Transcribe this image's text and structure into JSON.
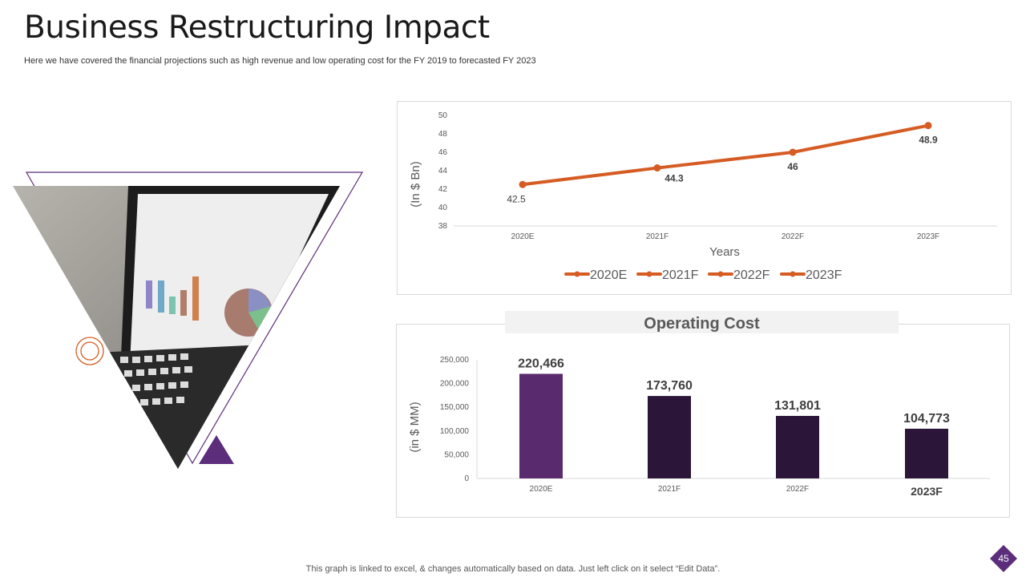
{
  "title": "Business Restructuring Impact",
  "subtitle": "Here we have covered the financial projections such as high revenue and low operating cost for the FY 2019 to forecasted FY 2023",
  "footer": "This graph is linked to excel, & changes automatically based on data. Just left click on it select “Edit Data”.",
  "page_number": "45",
  "colors": {
    "line": "#d55c23",
    "bar_2020E": "#5a2a6e",
    "bar_dark": "#2b1538",
    "accent_purple": "#5b2d7a",
    "accent_orange": "#d55c23"
  },
  "chart_data": [
    {
      "type": "line",
      "categories": [
        "2020E",
        "2021F",
        "2022F",
        "2023F"
      ],
      "values": [
        42.5,
        44.3,
        46,
        48.9
      ],
      "data_labels": [
        "42.5",
        "44.3",
        "46",
        "48.9"
      ],
      "ylabel": "(In $ Bn)",
      "xlabel": "Years",
      "ylim": [
        38,
        50
      ],
      "yticks": [
        "38",
        "40",
        "42",
        "44",
        "46",
        "48",
        "50"
      ],
      "legend": [
        "2020E",
        "2021F",
        "2022F",
        "2023F"
      ],
      "legend_position": "bottom"
    },
    {
      "type": "bar",
      "title": "Operating Cost",
      "categories": [
        "2020E",
        "2021F",
        "2022F",
        "2023F"
      ],
      "values": [
        220466,
        173760,
        131801,
        104773
      ],
      "data_labels": [
        "220,466",
        "173,760",
        "131,801",
        "104,773"
      ],
      "ylabel": "(in $ MM)",
      "ylim": [
        0,
        250000
      ],
      "yticks": [
        "0",
        "50,000",
        "100,000",
        "150,000",
        "200,000",
        "250,000"
      ]
    }
  ]
}
